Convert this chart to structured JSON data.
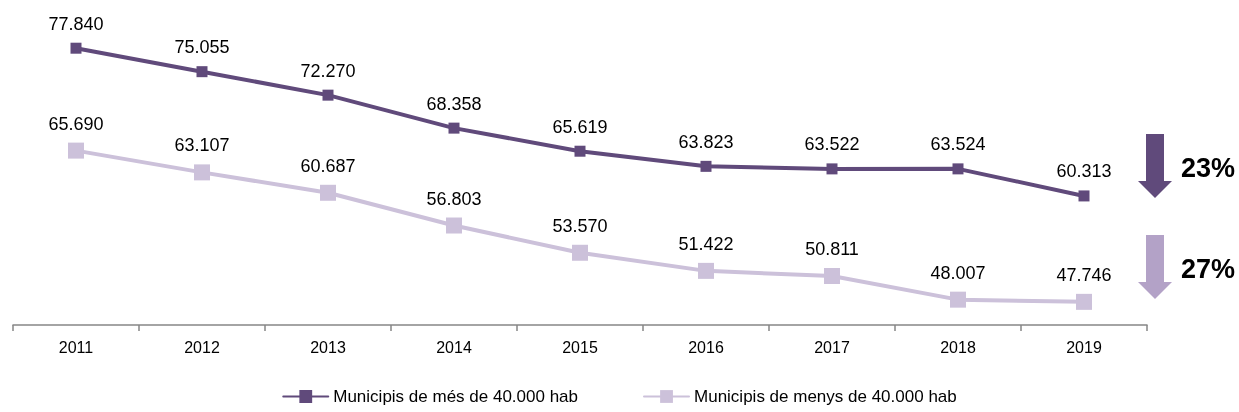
{
  "chart_data": {
    "type": "line",
    "categories": [
      "2011",
      "2012",
      "2013",
      "2014",
      "2015",
      "2016",
      "2017",
      "2018",
      "2019"
    ],
    "series": [
      {
        "name": "Municipis de més de 40.000 hab",
        "color": "#604a7b",
        "values": [
          77840,
          75055,
          72270,
          68358,
          65619,
          63823,
          63522,
          63524,
          60313
        ],
        "value_labels": [
          "77.840",
          "75.055",
          "72.270",
          "68.358",
          "65.619",
          "63.823",
          "63.522",
          "63.524",
          "60.313"
        ]
      },
      {
        "name": "Municipis de menys de 40.000 hab",
        "color": "#ccc1da",
        "values": [
          65690,
          63107,
          60687,
          56803,
          53570,
          51422,
          50811,
          48007,
          47746
        ],
        "value_labels": [
          "65.690",
          "63.107",
          "60.687",
          "56.803",
          "53.570",
          "51.422",
          "50.811",
          "48.007",
          "47.746"
        ]
      }
    ],
    "annotations": [
      "23%",
      "27%"
    ],
    "legend": "bottom",
    "marker": "square",
    "line_style": "solid",
    "tick_labels": "x"
  }
}
